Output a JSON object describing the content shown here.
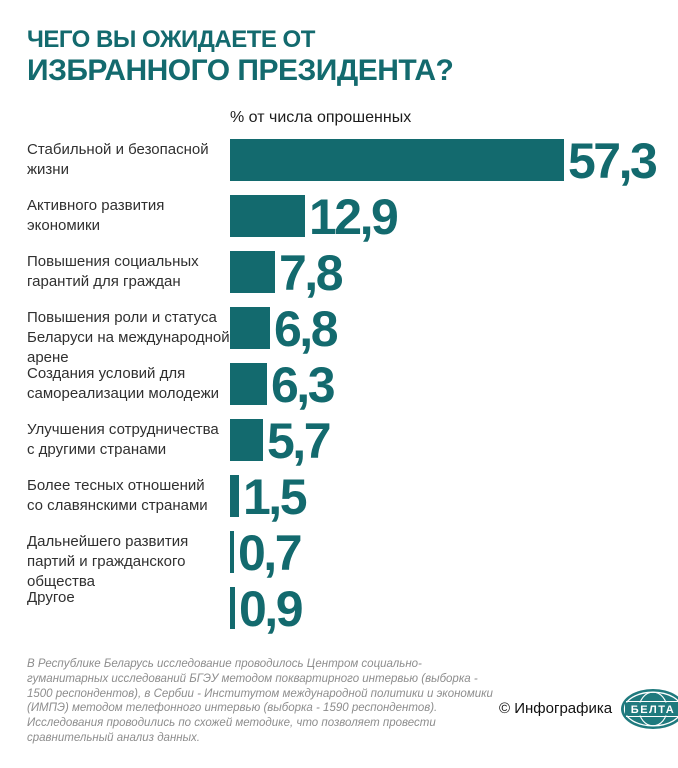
{
  "title": {
    "line1": "ЧЕГО ВЫ ОЖИДАЕТЕ ОТ",
    "line2": "ИЗБРАННОГО ПРЕЗИДЕНТА?"
  },
  "subtitle": "% от числа опрошенных",
  "chart_data": {
    "type": "bar",
    "orientation": "horizontal",
    "title": "ЧЕГО ВЫ ОЖИДАЕТЕ ОТ ИЗБРАННОГО ПРЕЗИДЕНТА?",
    "unit_label": "% от числа опрошенных",
    "xlim": [
      0,
      60
    ],
    "grid": false,
    "legend": false,
    "bar_color": "#136A6E",
    "categories": [
      "Стабильной и безопасной\nжизни",
      "Активного развития\nэкономики",
      "Повышения социальных\nгарантий для граждан",
      "Повышения роли и статуса\nБеларуси на международной\nарене",
      "Создания условий для\nсамореализации молодежи",
      "Улучшения сотрудничества\nс другими странами",
      "Более тесных отношений\nсо славянскими странами",
      "Дальнейшего развития\nпартий и гражданского\nобщества",
      "Другое"
    ],
    "values": [
      57.3,
      12.9,
      7.8,
      6.8,
      6.3,
      5.7,
      1.5,
      0.7,
      0.9
    ],
    "value_labels": [
      "57,3",
      "12,9",
      "7,8",
      "6,8",
      "6,3",
      "5,7",
      "1,5",
      "0,7",
      "0,9"
    ]
  },
  "footnote": "В Республике Беларусь исследование проводилось Центром социально-гуманитарных исследований БГЭУ методом поквартирного интервью (выборка - 1500 респондентов), в Сербии - Институтом международной политики и экономики (ИМПЭ) методом телефонного интервью (выборка - 1590 респондентов). Исследования проводились по схожей методике, что позволяет провести сравнительный анализ данных.",
  "credit": {
    "copyright_label": "© Инфографика",
    "logo_text": "БЕЛТА"
  },
  "colors": {
    "accent": "#136A6E",
    "label_text": "#303030",
    "footnote_text": "#8D8D8D"
  }
}
